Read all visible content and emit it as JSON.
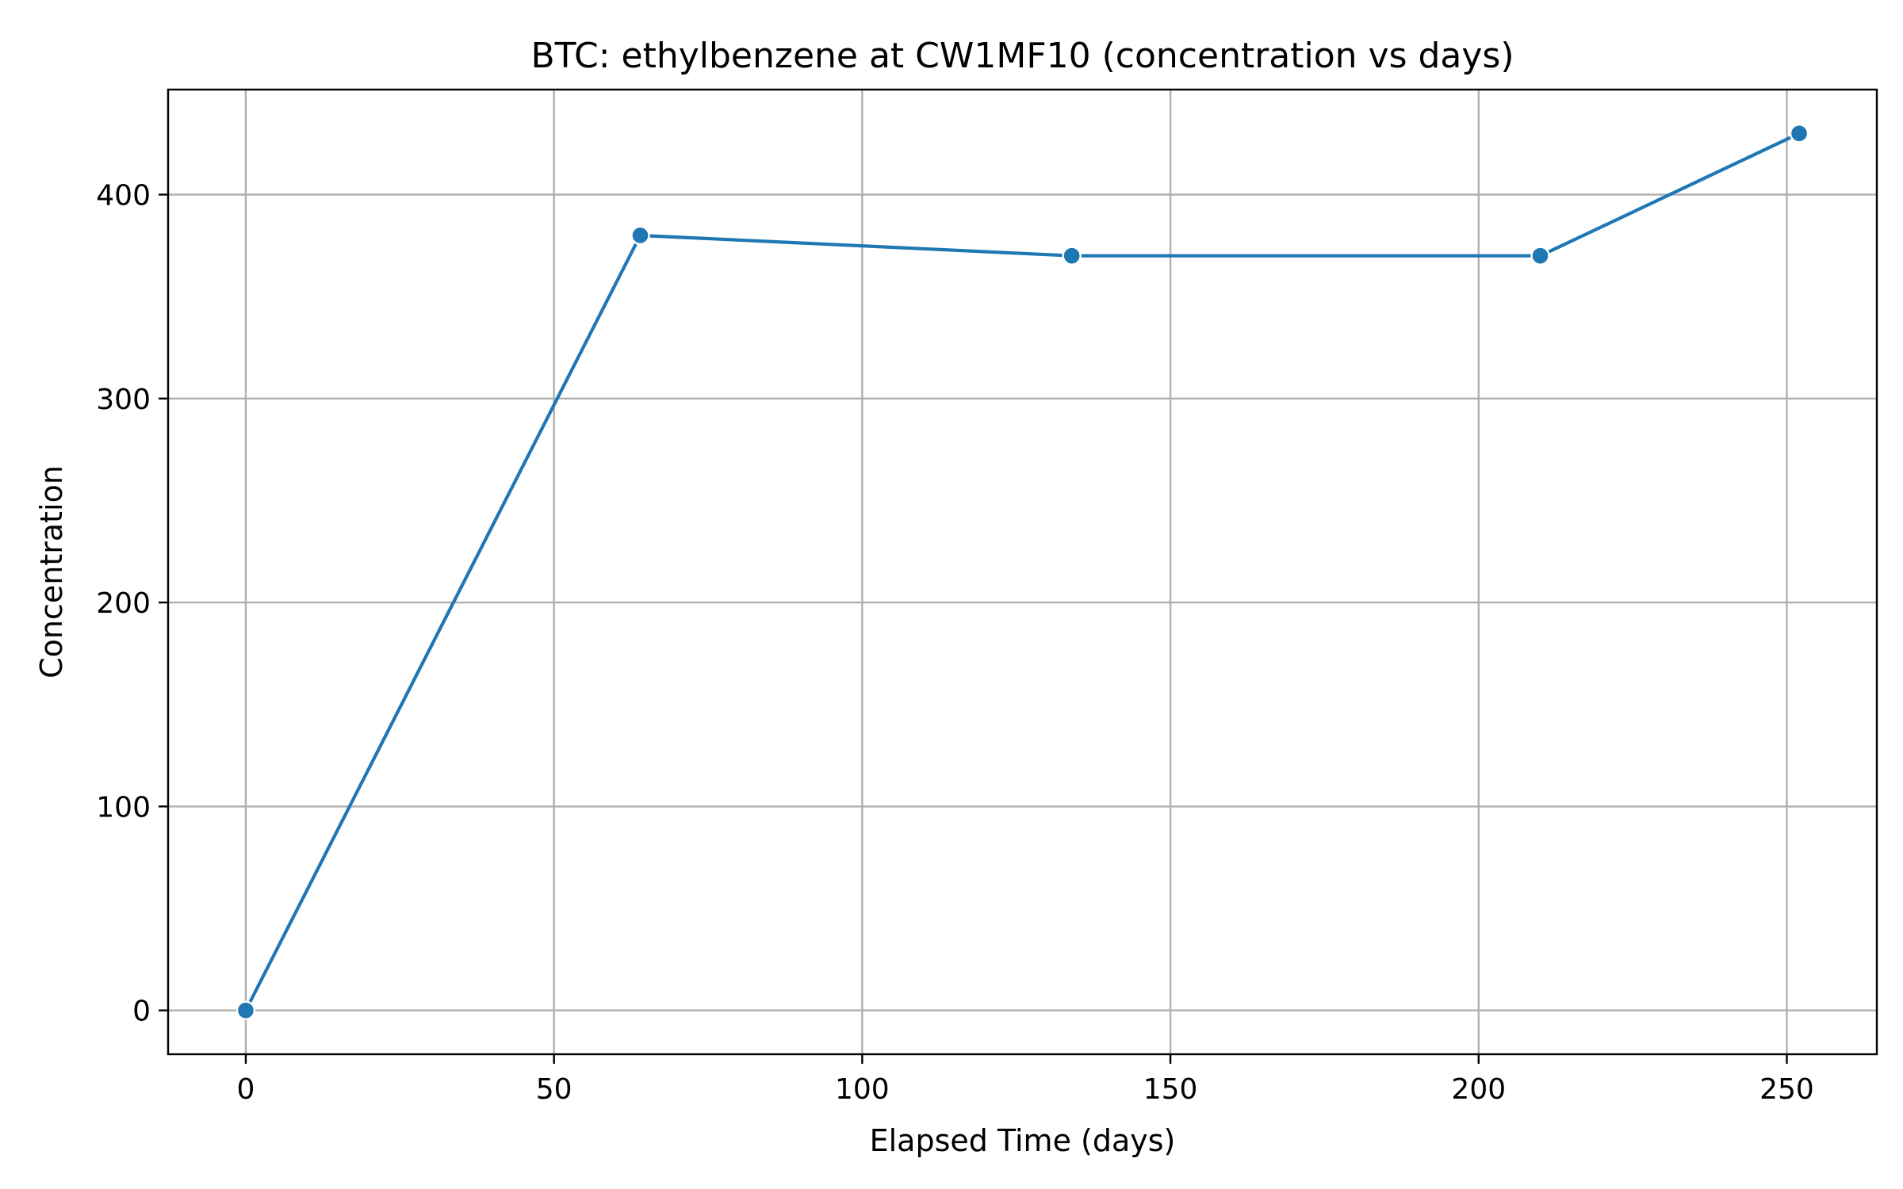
{
  "chart_data": {
    "type": "line",
    "title": "BTC: ethylbenzene at CW1MF10 (concentration vs days)",
    "xlabel": "Elapsed Time (days)",
    "ylabel": "Concentration",
    "xlim": [
      -12.6,
      264.6
    ],
    "ylim": [
      -21.5,
      451.5
    ],
    "xticks": [
      0,
      50,
      100,
      150,
      200,
      250
    ],
    "yticks": [
      0,
      100,
      200,
      300,
      400
    ],
    "xtick_labels": [
      "0",
      "50",
      "100",
      "150",
      "200",
      "250"
    ],
    "ytick_labels": [
      "0",
      "100",
      "200",
      "300",
      "400"
    ],
    "grid": true,
    "series": [
      {
        "color": "#1f77b4",
        "marker": "circle",
        "x": [
          0,
          64,
          134,
          210,
          252
        ],
        "y": [
          0,
          380,
          370,
          370,
          430
        ]
      }
    ]
  }
}
